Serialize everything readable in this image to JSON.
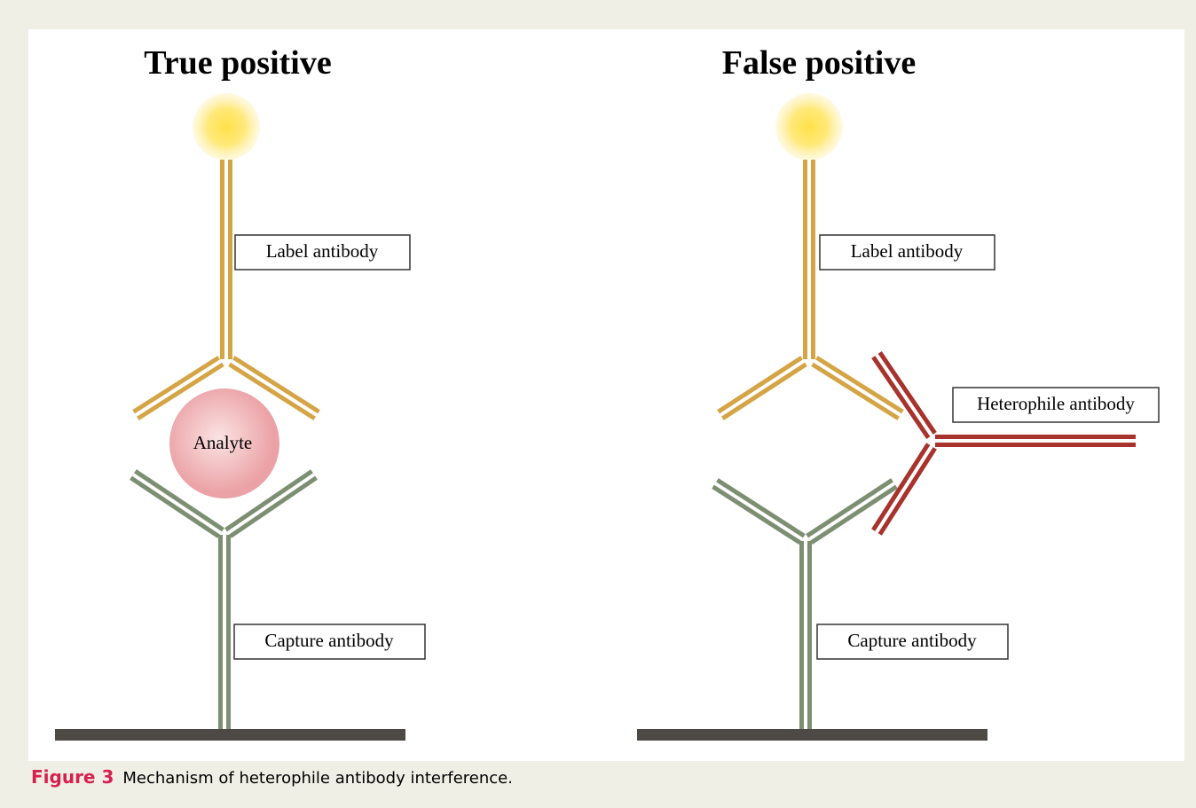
{
  "panels": [
    {
      "title": "True positive",
      "label_antibody": "Label antibody",
      "analyte": "Analyte",
      "capture_antibody": "Capture antibody"
    },
    {
      "title": "False positive",
      "label_antibody": "Label antibody",
      "heterophile_antibody": "Heterophile antibody",
      "capture_antibody": "Capture antibody"
    }
  ],
  "caption": {
    "label": "Figure 3",
    "text": "Mechanism of heterophile antibody interference."
  }
}
